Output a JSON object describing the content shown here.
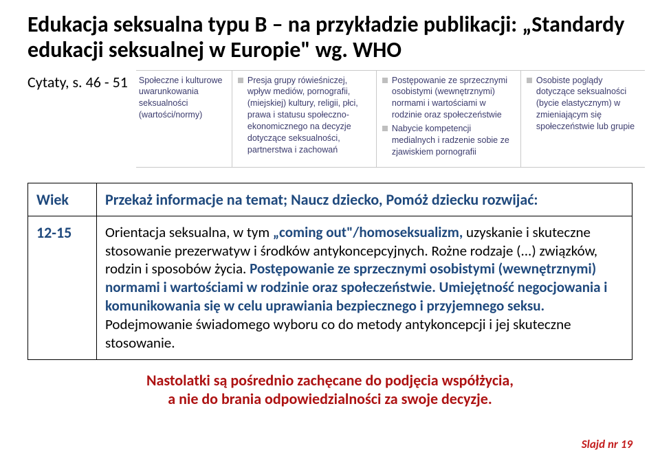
{
  "title": "Edukacja seksualna typu B – na przykładzie publikacji: „Standardy edukacji seksualnej w Europie\" wg. WHO",
  "citation": "Cytaty, s. 46 - 51",
  "excerpt": {
    "label": "Społeczne i kulturowe uwarunkowania seksualności (wartości/normy)",
    "col2": [
      "Presja grupy rówieśniczej, wpływ mediów, pornografii, (miejskiej) kultury, religii, płci, prawa i statusu społeczno-ekonomicznego na decyzje dotyczące seksualności, partnerstwa i zachowań"
    ],
    "col3": [
      "Postępowanie ze sprzecznymi osobistymi (wewnętrznymi) normami i wartościami w rodzinie oraz społeczeństwie",
      "Nabycie kompetencji medialnych i radzenie sobie ze zjawiskiem pornografii"
    ],
    "col4": [
      "Osobiste poglądy dotyczące seksualności (bycie elastycznym) w zmieniającym się społeczeństwie lub grupie"
    ]
  },
  "table": {
    "header_age": "Wiek",
    "header_content": "Przekaż informacje na temat; Naucz dziecko, Pomóż dziecku rozwijać:",
    "age": "12-15",
    "content_plain1": "Orientacja seksualna, w tym ",
    "content_blue1": "„coming out\"/homoseksualizm,",
    "content_plain2": " uzyskanie i skuteczne stosowanie prezerwatyw i środków antykoncepcyjnych. Rożne rodzaje (...) związków, rodzin i sposobów życia. ",
    "content_blue2": "Postępowanie ze sprzecznymi osobistymi (wewnętrznymi) normami i wartościami w rodzinie oraz społeczeństwie. Umiejętność negocjowania i komunikowania się w celu uprawiania bezpiecznego i przyjemnego seksu.",
    "content_plain3": " Podejmowanie świadomego wyboru co do metody antykoncepcji i jej skuteczne stosowanie."
  },
  "summary_line1": "Nastolatki są pośrednio zachęcane do podjęcia współżycia,",
  "summary_line2": "a nie do brania odpowiedzialności za swoje decyzje.",
  "slide_num": "Slajd nr 19"
}
